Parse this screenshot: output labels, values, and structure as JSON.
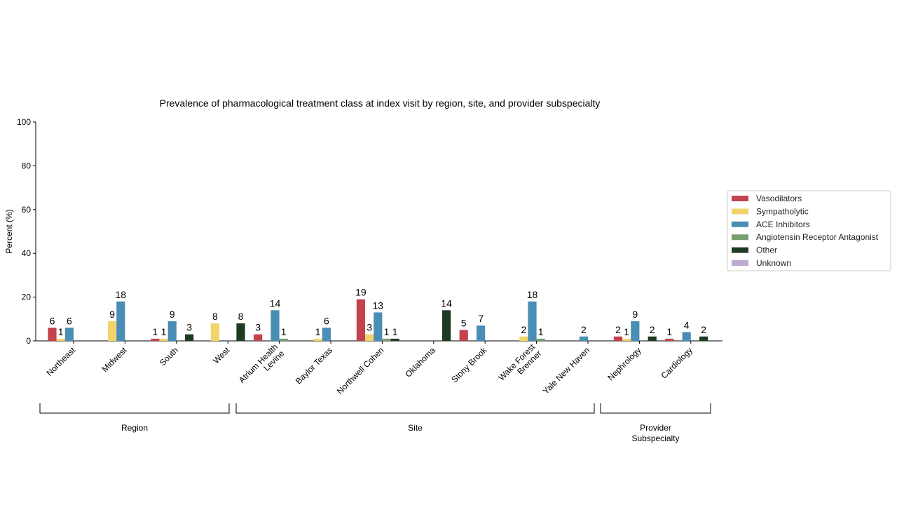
{
  "chart_data": {
    "type": "bar",
    "title": "Prevalence of pharmacological treatment class at index visit by region, site, and provider subspecialty",
    "ylabel": "Percent (%)",
    "xlabel": "",
    "ylim": [
      0,
      100
    ],
    "yticks": [
      0,
      20,
      40,
      60,
      80,
      100
    ],
    "grid": false,
    "legend_position": "right",
    "categories": [
      [
        "Northeast"
      ],
      [
        "Midwest"
      ],
      [
        "South"
      ],
      [
        "West"
      ],
      [
        "Atrium Health",
        "Levine"
      ],
      [
        "Baylor Texas"
      ],
      [
        "Northwell Cohen"
      ],
      [
        "Oklahoma"
      ],
      [
        "Stony Brook"
      ],
      [
        "Wake Forest",
        "Brenner"
      ],
      [
        "Yale New Haven"
      ],
      [
        "Nephrology"
      ],
      [
        "Cardiology"
      ]
    ],
    "series": [
      {
        "name": "Vasodilators",
        "color": "#c4424e",
        "values": [
          6,
          0,
          1,
          0,
          3,
          0,
          19,
          0,
          5,
          0,
          0,
          2,
          1
        ],
        "labels": [
          "6",
          "",
          "1",
          "",
          "3",
          "",
          "19",
          "",
          "5",
          "",
          "",
          "2",
          "1"
        ]
      },
      {
        "name": "Sympatholytic",
        "color": "#f2d46a",
        "values": [
          1,
          9,
          1,
          8,
          0,
          1,
          3,
          0,
          0,
          2,
          0,
          1,
          0
        ],
        "labels": [
          "1",
          "9",
          "1",
          "8",
          "",
          "1",
          "3",
          "",
          "",
          "2",
          "",
          "1",
          ""
        ]
      },
      {
        "name": "ACE Inhibitors",
        "color": "#4a8db5",
        "values": [
          6,
          18,
          9,
          0,
          14,
          6,
          13,
          0,
          7,
          18,
          2,
          9,
          4
        ],
        "labels": [
          "6",
          "18",
          "9",
          "",
          "14",
          "6",
          "13",
          "",
          "7",
          "18",
          "2",
          "9",
          "4"
        ]
      },
      {
        "name": "Angiotensin Receptor Antagonist",
        "color": "#7a9e6e",
        "values": [
          0,
          0,
          0,
          0,
          1,
          0,
          1,
          0,
          0,
          1,
          0,
          0,
          0
        ],
        "labels": [
          "",
          "",
          "",
          "",
          "1",
          "",
          "1",
          "",
          "",
          "1",
          "",
          "",
          ""
        ]
      },
      {
        "name": "Other",
        "color": "#1f3a22",
        "values": [
          0,
          0,
          3,
          8,
          0,
          0,
          1,
          14,
          0,
          0,
          0,
          2,
          2
        ],
        "labels": [
          "",
          "",
          "3",
          "8",
          "",
          "",
          "1",
          "14",
          "",
          "",
          "",
          "2",
          "2"
        ]
      },
      {
        "name": "Unknown",
        "color": "#c0a9cf",
        "values": [
          0,
          0,
          0,
          0,
          0,
          0,
          0,
          0,
          0,
          0,
          0,
          0,
          0
        ],
        "labels": [
          "",
          "",
          "",
          "",
          "",
          "",
          "",
          "",
          "",
          "",
          "",
          "",
          ""
        ]
      }
    ],
    "groups": [
      {
        "label": [
          "Region"
        ],
        "from": 0,
        "to": 3
      },
      {
        "label": [
          "Site"
        ],
        "from": 4,
        "to": 10
      },
      {
        "label": [
          "Provider",
          "Subspecialty"
        ],
        "from": 11,
        "to": 12
      }
    ]
  }
}
